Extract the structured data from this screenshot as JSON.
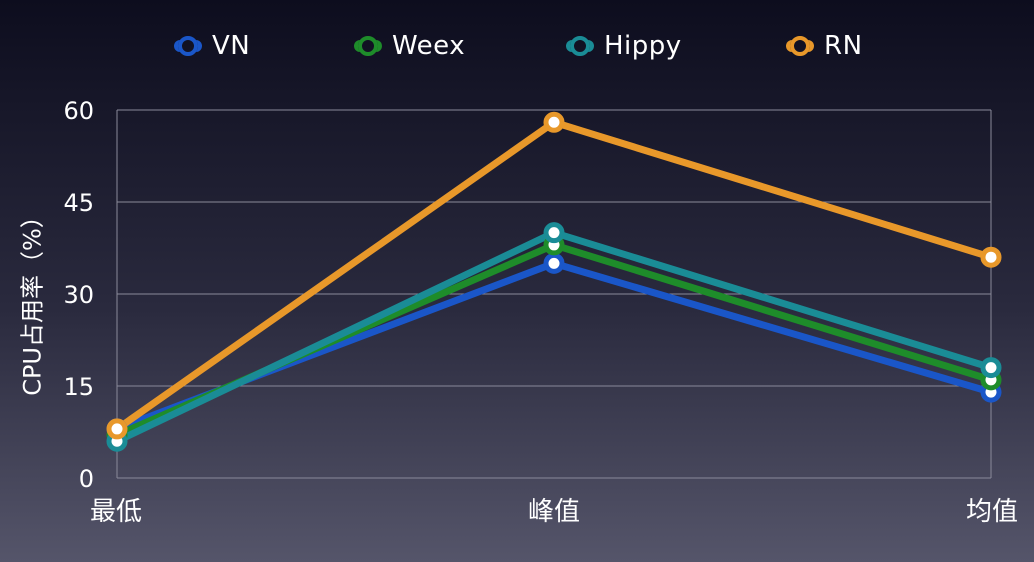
{
  "chart_data": {
    "type": "line",
    "title": "",
    "xlabel": "",
    "ylabel": "CPU占用率（%）",
    "categories": [
      "最低",
      "峰值",
      "均值"
    ],
    "ylim": [
      0,
      60
    ],
    "yticks": [
      0,
      15,
      30,
      45,
      60
    ],
    "grid": true,
    "legend_position": "top",
    "series": [
      {
        "name": "VN",
        "color": "#1a56c8",
        "values": [
          8,
          35,
          14
        ]
      },
      {
        "name": "Weex",
        "color": "#1e8c2a",
        "values": [
          7,
          38,
          16
        ]
      },
      {
        "name": "Hippy",
        "color": "#1a8c96",
        "values": [
          6,
          40,
          18
        ]
      },
      {
        "name": "RN",
        "color": "#e8982a",
        "values": [
          8,
          58,
          36
        ]
      }
    ]
  }
}
